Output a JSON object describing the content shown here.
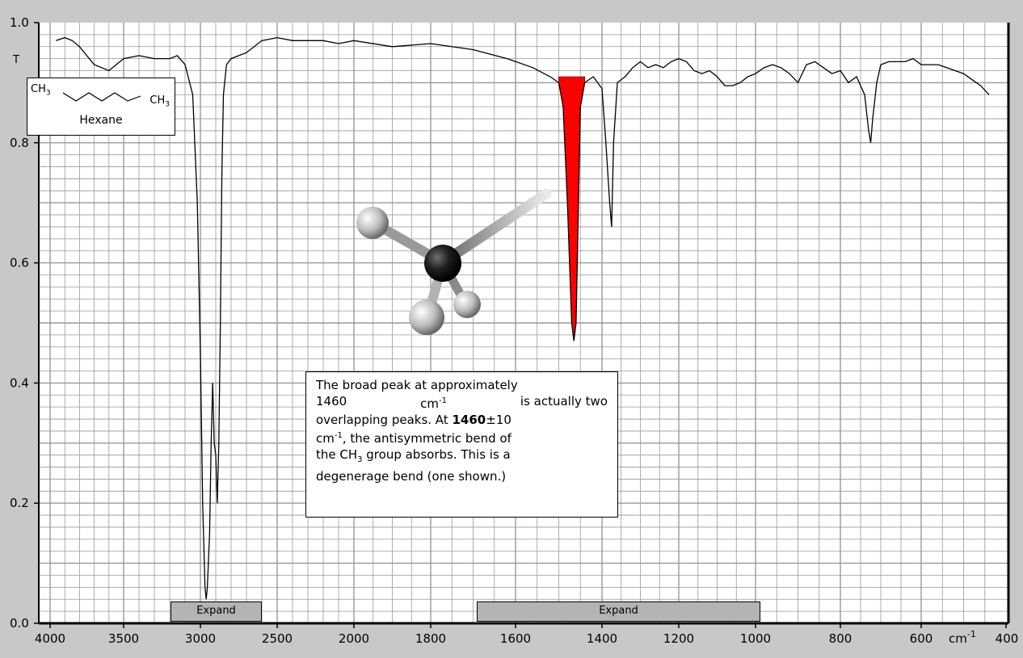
{
  "chart_data": {
    "type": "line",
    "ylabel": "T",
    "xlabel": "cm-1",
    "xlim": [
      4000,
      400
    ],
    "ylim": [
      0,
      1.0
    ],
    "x_ticks": [
      4000,
      3500,
      3000,
      2500,
      2000,
      1800,
      1600,
      1400,
      1200,
      1000,
      800,
      600,
      400
    ],
    "x_tick_labels": [
      "4000",
      "3500",
      "3000",
      "2500",
      "2000",
      "1800",
      "1600",
      "1400",
      "1200",
      "1000",
      "800",
      "600",
      "400"
    ],
    "y_ticks": [
      0.0,
      0.2,
      0.4,
      0.6,
      0.8,
      1.0
    ],
    "y_tick_labels": [
      "0.0",
      "0.2",
      "0.4",
      "0.6",
      "0.8",
      "1.0"
    ],
    "x_unit_label": "cm",
    "x_unit_sup": "-1",
    "grid": true,
    "series": [
      {
        "points": [
          [
            3960,
            0.97
          ],
          [
            3900,
            0.975
          ],
          [
            3850,
            0.97
          ],
          [
            3800,
            0.96
          ],
          [
            3700,
            0.93
          ],
          [
            3600,
            0.92
          ],
          [
            3500,
            0.94
          ],
          [
            3400,
            0.945
          ],
          [
            3300,
            0.94
          ],
          [
            3200,
            0.94
          ],
          [
            3150,
            0.945
          ],
          [
            3100,
            0.93
          ],
          [
            3050,
            0.88
          ],
          [
            3020,
            0.7
          ],
          [
            3000,
            0.45
          ],
          [
            2985,
            0.2
          ],
          [
            2970,
            0.06
          ],
          [
            2962,
            0.04
          ],
          [
            2955,
            0.06
          ],
          [
            2940,
            0.15
          ],
          [
            2930,
            0.3
          ],
          [
            2920,
            0.4
          ],
          [
            2910,
            0.3
          ],
          [
            2900,
            0.28
          ],
          [
            2890,
            0.2
          ],
          [
            2880,
            0.3
          ],
          [
            2870,
            0.5
          ],
          [
            2860,
            0.75
          ],
          [
            2850,
            0.88
          ],
          [
            2830,
            0.93
          ],
          [
            2800,
            0.94
          ],
          [
            2700,
            0.95
          ],
          [
            2600,
            0.97
          ],
          [
            2500,
            0.975
          ],
          [
            2400,
            0.97
          ],
          [
            2200,
            0.97
          ],
          [
            2100,
            0.965
          ],
          [
            2000,
            0.97
          ],
          [
            1900,
            0.96
          ],
          [
            1800,
            0.965
          ],
          [
            1700,
            0.955
          ],
          [
            1620,
            0.94
          ],
          [
            1560,
            0.925
          ],
          [
            1520,
            0.91
          ],
          [
            1500,
            0.9
          ],
          [
            1490,
            0.86
          ],
          [
            1480,
            0.7
          ],
          [
            1470,
            0.5
          ],
          [
            1465,
            0.47
          ],
          [
            1460,
            0.5
          ],
          [
            1455,
            0.68
          ],
          [
            1450,
            0.86
          ],
          [
            1440,
            0.9
          ],
          [
            1420,
            0.91
          ],
          [
            1400,
            0.89
          ],
          [
            1390,
            0.8
          ],
          [
            1380,
            0.7
          ],
          [
            1375,
            0.66
          ],
          [
            1370,
            0.8
          ],
          [
            1360,
            0.9
          ],
          [
            1340,
            0.91
          ],
          [
            1320,
            0.925
          ],
          [
            1300,
            0.935
          ],
          [
            1280,
            0.925
          ],
          [
            1260,
            0.93
          ],
          [
            1240,
            0.925
          ],
          [
            1220,
            0.935
          ],
          [
            1200,
            0.94
          ],
          [
            1180,
            0.935
          ],
          [
            1160,
            0.92
          ],
          [
            1140,
            0.915
          ],
          [
            1120,
            0.92
          ],
          [
            1100,
            0.91
          ],
          [
            1080,
            0.895
          ],
          [
            1060,
            0.895
          ],
          [
            1040,
            0.9
          ],
          [
            1020,
            0.91
          ],
          [
            1000,
            0.915
          ],
          [
            980,
            0.925
          ],
          [
            960,
            0.93
          ],
          [
            940,
            0.925
          ],
          [
            920,
            0.915
          ],
          [
            900,
            0.9
          ],
          [
            880,
            0.93
          ],
          [
            860,
            0.935
          ],
          [
            840,
            0.925
          ],
          [
            820,
            0.915
          ],
          [
            800,
            0.92
          ],
          [
            780,
            0.9
          ],
          [
            760,
            0.91
          ],
          [
            740,
            0.88
          ],
          [
            730,
            0.82
          ],
          [
            725,
            0.8
          ],
          [
            720,
            0.84
          ],
          [
            710,
            0.9
          ],
          [
            700,
            0.93
          ],
          [
            680,
            0.935
          ],
          [
            660,
            0.935
          ],
          [
            640,
            0.935
          ],
          [
            620,
            0.94
          ],
          [
            600,
            0.93
          ],
          [
            580,
            0.93
          ],
          [
            560,
            0.93
          ],
          [
            540,
            0.925
          ],
          [
            520,
            0.92
          ],
          [
            500,
            0.915
          ],
          [
            480,
            0.905
          ],
          [
            460,
            0.895
          ],
          [
            440,
            0.88
          ]
        ]
      }
    ],
    "highlight_band": {
      "from": 1500,
      "to": 1440,
      "top": 0.91,
      "color": "#ff0000"
    },
    "trace_color": "#000000",
    "grid_color": "#999999",
    "plot_bg": "#ffffff"
  },
  "compound": {
    "name": "Hexane",
    "left_group": "CH",
    "left_group_sub": "3",
    "right_group": "CH",
    "right_group_sub": "3"
  },
  "callout": {
    "line1": "The broad peak at approximately",
    "line2a": "1460",
    "line2b": "cm",
    "line2c": "-1",
    "line2d": "is actually two",
    "line3": "overlapping peaks. At",
    "bold_value": "1460",
    "line3b": "±10",
    "line4a": "cm",
    "line4b": "-1",
    "line4c": ", the antisymmetric bend of",
    "line5a": "the CH",
    "line5b": "3",
    "line5c": " group absorbs. This is a",
    "line6": "degenerage bend (one shown.)"
  },
  "buttons": {
    "expand_left_label": "Expand",
    "expand_right_label": "Expand"
  }
}
